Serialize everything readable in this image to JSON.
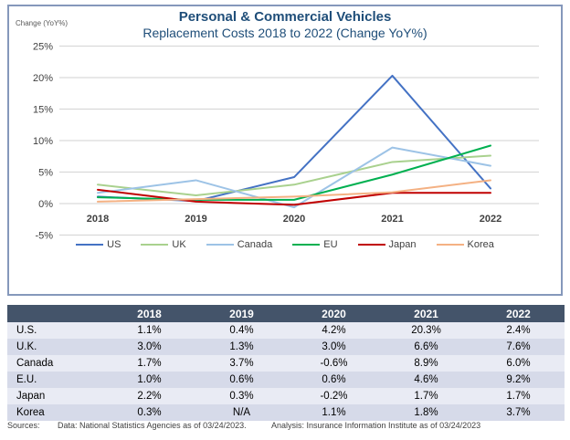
{
  "header": {
    "title": "Personal & Commercial Vehicles",
    "subtitle": "Replacement Costs 2018 to 2022 (Change YoY%)",
    "y_axis_caption": "Change (YoY%)"
  },
  "colors": {
    "title_text": "#1F4E79",
    "panel_border": "#8598BB",
    "gridline": "#D9D9D9",
    "axis_text": "#404040",
    "table_header_bg": "#44546A",
    "table_stripe_light": "#E9EBF4",
    "table_stripe_dark": "#D6DAE9"
  },
  "chart_data": {
    "type": "line",
    "x": [
      "2018",
      "2019",
      "2020",
      "2021",
      "2022"
    ],
    "series": [
      {
        "name": "US",
        "color": "#4472C4",
        "values": [
          1.1,
          0.4,
          4.2,
          20.3,
          2.4
        ]
      },
      {
        "name": "UK",
        "color": "#A9D18E",
        "values": [
          3.0,
          1.3,
          3.0,
          6.6,
          7.6
        ]
      },
      {
        "name": "Canada",
        "color": "#9DC3E6",
        "values": [
          1.7,
          3.7,
          -0.6,
          8.9,
          6.0
        ]
      },
      {
        "name": "EU",
        "color": "#00B050",
        "values": [
          1.0,
          0.6,
          0.6,
          4.6,
          9.2
        ]
      },
      {
        "name": "Japan",
        "color": "#C00000",
        "values": [
          2.2,
          0.3,
          -0.2,
          1.7,
          1.7
        ]
      },
      {
        "name": "Korea",
        "color": "#F4B183",
        "values": [
          0.3,
          null,
          1.1,
          1.8,
          3.7
        ]
      }
    ],
    "title": "Personal & Commercial Vehicles",
    "subtitle": "Replacement Costs 2018 to 2022 (Change YoY%)",
    "xlabel": "",
    "ylabel": "Change (YoY%)",
    "ylim": [
      -5,
      25
    ],
    "ytick_step": 5,
    "ytick_suffix": "%",
    "grid": true,
    "legend_position": "bottom"
  },
  "table": {
    "columns": [
      "",
      "2018",
      "2019",
      "2020",
      "2021",
      "2022"
    ],
    "rows": [
      {
        "label": "U.S.",
        "values": [
          "1.1%",
          "0.4%",
          "4.2%",
          "20.3%",
          "2.4%"
        ]
      },
      {
        "label": "U.K.",
        "values": [
          "3.0%",
          "1.3%",
          "3.0%",
          "6.6%",
          "7.6%"
        ]
      },
      {
        "label": "Canada",
        "values": [
          "1.7%",
          "3.7%",
          "-0.6%",
          "8.9%",
          "6.0%"
        ]
      },
      {
        "label": "E.U.",
        "values": [
          "1.0%",
          "0.6%",
          "0.6%",
          "4.6%",
          "9.2%"
        ]
      },
      {
        "label": "Japan",
        "values": [
          "2.2%",
          "0.3%",
          "-0.2%",
          "1.7%",
          "1.7%"
        ]
      },
      {
        "label": "Korea",
        "values": [
          "0.3%",
          "N/A",
          "1.1%",
          "1.8%",
          "3.7%"
        ]
      }
    ]
  },
  "footer": {
    "sources_label": "Sources:",
    "data_note": "Data: National Statistics Agencies as of 03/24/2023.",
    "analysis_note": "Analysis: Insurance Information Institute as of 03/24/2023"
  }
}
